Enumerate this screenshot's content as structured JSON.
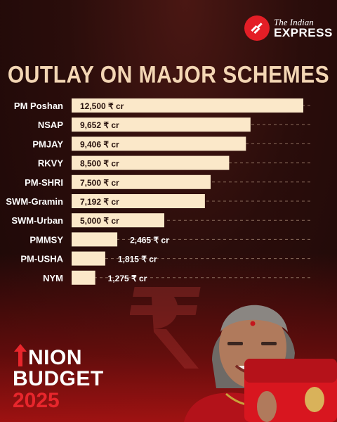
{
  "brand": {
    "name_top": "The Indian",
    "name_bottom": "EXPRESS"
  },
  "chart_data": {
    "type": "bar",
    "orientation": "horizontal",
    "title": "OUTLAY ON MAJOR SCHEMES",
    "categories": [
      "PM Poshan",
      "NSAP",
      "PMJAY",
      "RKVY",
      "PM-SHRI",
      "SWM-Gramin",
      "SWM-Urban",
      "PMMSY",
      "PM-USHA",
      "NYM"
    ],
    "values": [
      12500,
      9652,
      9406,
      8500,
      7500,
      7192,
      5000,
      2465,
      1815,
      1275
    ],
    "value_labels": [
      "12,500 ₹ cr",
      "9,652 ₹ cr",
      "9,406 ₹ cr",
      "8,500 ₹ cr",
      "7,500 ₹ cr",
      "7,192 ₹ cr",
      "5,000 ₹ cr",
      "2,465 ₹ cr",
      "1,815 ₹ cr",
      "1,275 ₹ cr"
    ],
    "xlim": [
      0,
      12500
    ],
    "bar_color": "#fbe8c9",
    "label_color": "#ffffff",
    "guide_color": "#8a6c5c"
  },
  "footer": {
    "line1": "NION",
    "line2": "BUDGET",
    "year": "2025",
    "accent": "#e8262c"
  }
}
